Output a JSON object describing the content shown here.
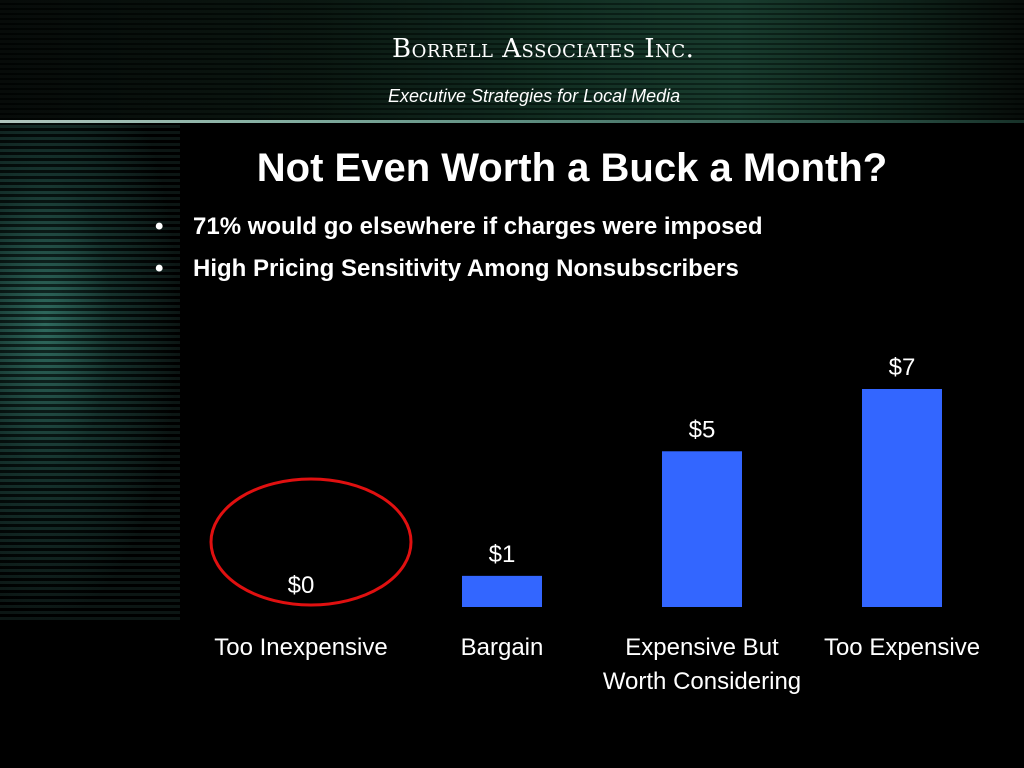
{
  "header": {
    "brand": "Borrell Associates Inc.",
    "tagline": "Executive Strategies for Local Media"
  },
  "slide": {
    "title": "Not Even Worth a Buck a Month?",
    "bullets": [
      "71% would go elsewhere if charges were imposed",
      "High Pricing Sensitivity Among Nonsubscribers"
    ]
  },
  "colors": {
    "bar": "#3366ff",
    "highlight_ring": "#e01010"
  },
  "chart_data": {
    "type": "bar",
    "categories": [
      [
        "Too Inexpensive"
      ],
      [
        "Bargain"
      ],
      [
        "Expensive But",
        "Worth Considering"
      ],
      [
        "Too Expensive"
      ]
    ],
    "values": [
      0,
      1,
      5,
      7
    ],
    "value_labels": [
      "$0",
      "$1",
      "$5",
      "$7"
    ],
    "ylim": [
      0,
      7
    ],
    "grid": false,
    "legend": "none",
    "highlighted_category_index": 0
  }
}
